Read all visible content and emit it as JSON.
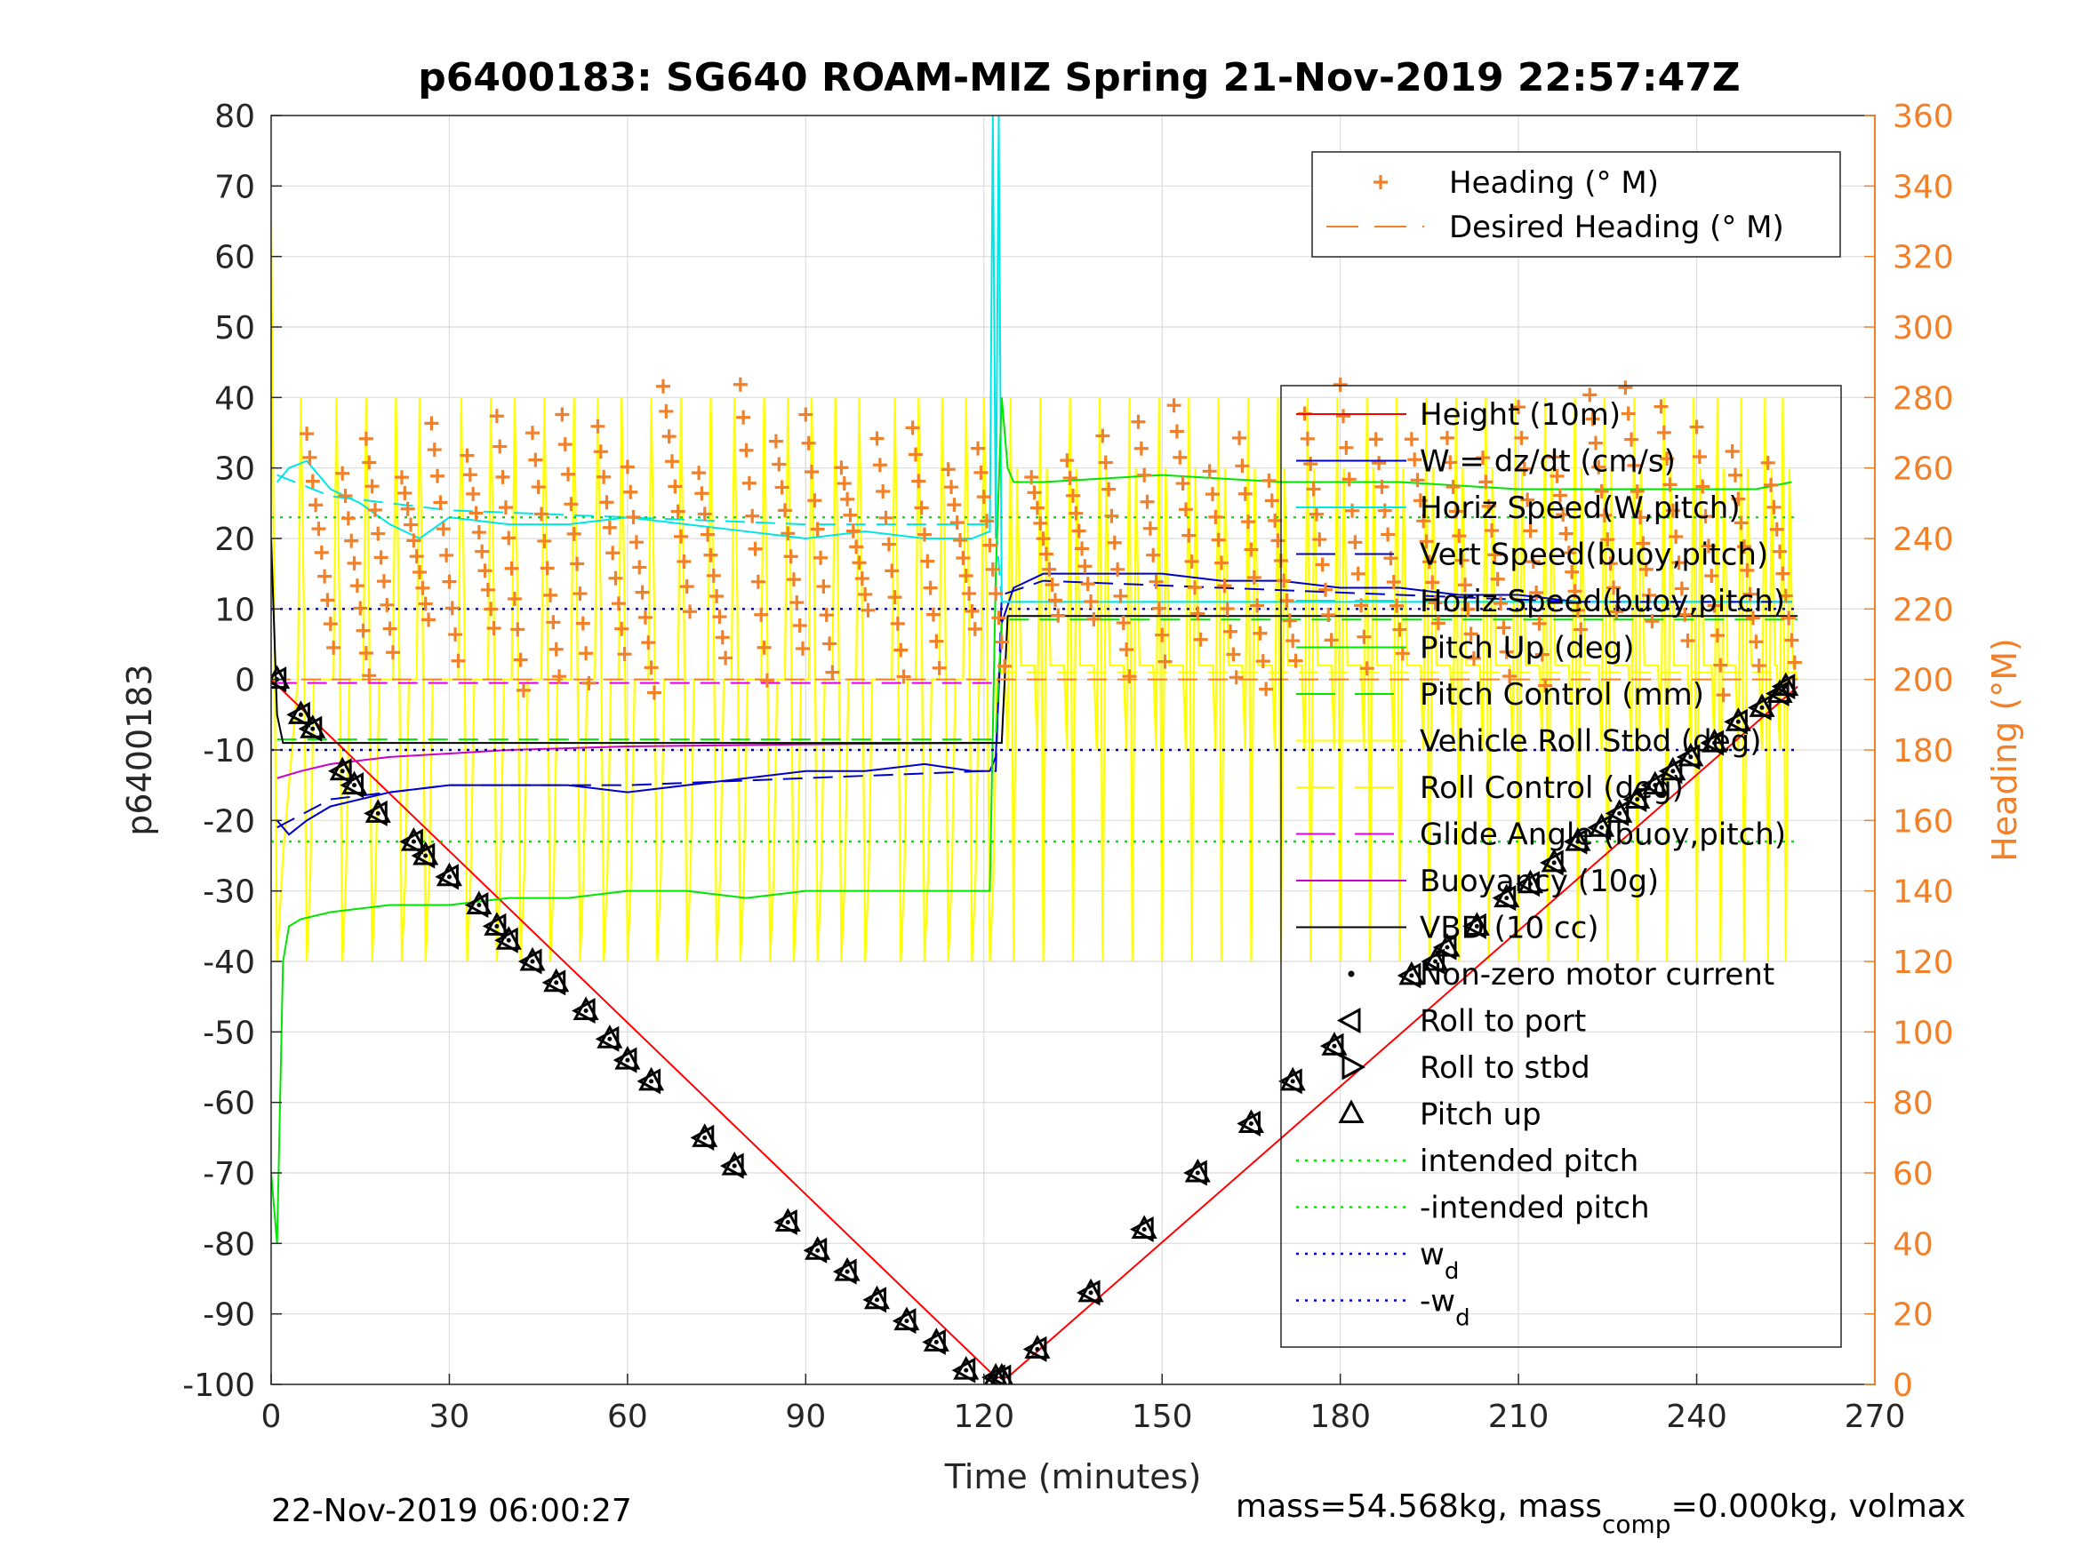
{
  "chart_data": {
    "type": "line",
    "title": "p6400183: SG640 ROAM-MIZ Spring 21-Nov-2019 22:57:47Z",
    "xlabel": "Time (minutes)",
    "ylabel_left": "p6400183",
    "ylabel_right": "Heading (°M)",
    "xlim": [
      0,
      270
    ],
    "ylim_left": [
      -100,
      80
    ],
    "ylim_right": [
      0,
      360
    ],
    "xticks": [
      0,
      30,
      60,
      90,
      120,
      150,
      180,
      210,
      240,
      270
    ],
    "yticks_left": [
      80,
      70,
      60,
      50,
      40,
      30,
      20,
      10,
      0,
      -10,
      -20,
      -30,
      -40,
      -50,
      -60,
      -70,
      -80,
      -90,
      -100
    ],
    "yticks_right": [
      360,
      340,
      320,
      300,
      280,
      260,
      240,
      220,
      200,
      180,
      160,
      140,
      120,
      100,
      80,
      60,
      40,
      20,
      0
    ],
    "grid": true,
    "footer_left": "22-Nov-2019 06:00:27",
    "footer_right": "mass=54.568kg, mass",
    "footer_right_sub": "comp",
    "footer_right_rest": "=0.000kg, volmax",
    "legend_top": [
      {
        "label": "Heading (° M)",
        "color": "#f28028",
        "style": "plus"
      },
      {
        "label": "Desired Heading (° M)",
        "color": "#f28028",
        "style": "dashed"
      }
    ],
    "legend_main": [
      {
        "label": "Height (10m)",
        "color": "#ff0000",
        "style": "solid"
      },
      {
        "label": "W = dz/dt (cm/s)",
        "color": "#0000cc",
        "style": "solid"
      },
      {
        "label": "Horiz Speed(W,pitch)",
        "color": "#00e5e5",
        "style": "solid"
      },
      {
        "label": "Vert Speed(buoy,pitch)",
        "color": "#0000cc",
        "style": "dashed"
      },
      {
        "label": "Horiz Speed(buoy,pitch)",
        "color": "#00e5e5",
        "style": "dashed"
      },
      {
        "label": "Pitch Up (deg)",
        "color": "#00e600",
        "style": "solid"
      },
      {
        "label": "Pitch Control (mm)",
        "color": "#00e600",
        "style": "dashed"
      },
      {
        "label": "Vehicle Roll Stbd (deg)",
        "color": "#ffff00",
        "style": "solid"
      },
      {
        "label": "Roll Control (deg)",
        "color": "#ffff00",
        "style": "dashed"
      },
      {
        "label": "Glide Angle (buoy,pitch)",
        "color": "#e600e6",
        "style": "dashed"
      },
      {
        "label": "Buoyancy (10g)",
        "color": "#cc00cc",
        "style": "solid"
      },
      {
        "label": "VBD (10 cc)",
        "color": "#000000",
        "style": "solid"
      },
      {
        "label": "Non-zero motor current",
        "color": "#000000",
        "style": "dot"
      },
      {
        "label": "Roll to port",
        "color": "#000000",
        "style": "tri-left"
      },
      {
        "label": "Roll to stbd",
        "color": "#000000",
        "style": "tri-right"
      },
      {
        "label": "Pitch up",
        "color": "#000000",
        "style": "tri-up"
      },
      {
        "label": "intended pitch",
        "color": "#00e600",
        "style": "dotted"
      },
      {
        "label": "-intended pitch",
        "color": "#00e600",
        "style": "dotted"
      },
      {
        "label": "w",
        "sub": "d",
        "color": "#0000cc",
        "style": "dotted"
      },
      {
        "label": "-w",
        "sub": "d",
        "color": "#0000cc",
        "style": "dotted"
      }
    ],
    "series": [
      {
        "name": "Height (10m)",
        "axis": "left",
        "color": "#ff0000",
        "style": "solid",
        "x": [
          0,
          122,
          124,
          257
        ],
        "y": [
          0,
          -99,
          -99,
          -1
        ]
      },
      {
        "name": "W = dz/dt (cm/s)",
        "axis": "left",
        "color": "#0000cc",
        "style": "solid",
        "x": [
          1,
          3,
          6,
          10,
          15,
          20,
          30,
          40,
          50,
          60,
          70,
          80,
          90,
          100,
          110,
          118,
          121,
          122,
          123,
          125,
          130,
          140,
          150,
          160,
          170,
          180,
          190,
          200,
          210,
          220,
          230,
          240,
          250,
          256
        ],
        "y": [
          -20,
          -22,
          -20,
          -18,
          -17,
          -16,
          -15,
          -15,
          -15,
          -16,
          -15,
          -14,
          -13,
          -13,
          -12,
          -13,
          -13,
          -11,
          8,
          13,
          15,
          15,
          15,
          14,
          14,
          13,
          13,
          12,
          12,
          11,
          11,
          11,
          11,
          11
        ]
      },
      {
        "name": "Horiz Speed(W,pitch)",
        "axis": "left",
        "color": "#00e5e5",
        "style": "solid",
        "x": [
          1,
          3,
          6,
          10,
          15,
          20,
          25,
          30,
          40,
          50,
          60,
          70,
          80,
          90,
          100,
          110,
          118,
          121,
          121.5,
          122,
          122.5,
          123,
          125,
          130,
          150,
          180,
          210,
          240,
          256
        ],
        "y": [
          28,
          30,
          31,
          27,
          25,
          22,
          20,
          23,
          22,
          22,
          23,
          22,
          21,
          20,
          21,
          20,
          20,
          21,
          80,
          20,
          80,
          11,
          11,
          11,
          11,
          11,
          11,
          11,
          11
        ]
      },
      {
        "name": "Vert Speed(buoy,pitch)",
        "axis": "left",
        "color": "#0000cc",
        "style": "dashed",
        "x": [
          1,
          10,
          30,
          60,
          90,
          120,
          122,
          123,
          130,
          160,
          190,
          220,
          256
        ],
        "y": [
          -21,
          -17,
          -15,
          -15,
          -14,
          -13,
          -13,
          12,
          14,
          13,
          12,
          11,
          11
        ]
      },
      {
        "name": "Horiz Speed(buoy,pitch)",
        "axis": "left",
        "color": "#00e5e5",
        "style": "dashed",
        "x": [
          1,
          10,
          30,
          60,
          90,
          120,
          122,
          123,
          130,
          160,
          190,
          220,
          256
        ],
        "y": [
          29,
          26,
          24,
          23,
          22,
          22,
          22,
          11,
          11,
          11,
          11,
          11,
          11
        ]
      },
      {
        "name": "Pitch Up (deg)",
        "axis": "left",
        "color": "#00e600",
        "style": "solid",
        "x": [
          0,
          1,
          2,
          3,
          5,
          10,
          20,
          30,
          40,
          50,
          60,
          70,
          80,
          90,
          100,
          110,
          120,
          121,
          122,
          123,
          124,
          125,
          130,
          150,
          170,
          190,
          210,
          230,
          250,
          256
        ],
        "y": [
          -70,
          -80,
          -40,
          -35,
          -34,
          -33,
          -32,
          -32,
          -31,
          -31,
          -30,
          -30,
          -31,
          -30,
          -30,
          -30,
          -30,
          -30,
          15,
          40,
          30,
          28,
          28,
          29,
          28,
          28,
          27,
          27,
          27,
          28
        ]
      },
      {
        "name": "Pitch Control (mm)",
        "axis": "left",
        "color": "#00e600",
        "style": "dashed",
        "x": [
          1,
          122,
          123,
          257
        ],
        "y": [
          -8.5,
          -8.5,
          8.5,
          8.5
        ]
      },
      {
        "name": "Glide Angle (buoy,pitch)",
        "axis": "left",
        "color": "#e600e6",
        "style": "dashed",
        "x": [
          1,
          122
        ],
        "y": [
          -0.5,
          -0.5
        ]
      },
      {
        "name": "Buoyancy (10g)",
        "axis": "left",
        "color": "#cc00cc",
        "style": "solid",
        "x": [
          1,
          5,
          10,
          20,
          30,
          40,
          60,
          90,
          120,
          122
        ],
        "y": [
          -14,
          -13,
          -12,
          -11,
          -10.5,
          -10,
          -9.5,
          -9.2,
          -9,
          -9
        ]
      },
      {
        "name": "VBD (10 cc)",
        "axis": "left",
        "color": "#000000",
        "style": "solid",
        "x": [
          0,
          1,
          2,
          122,
          123,
          124,
          257
        ],
        "y": [
          20,
          -5,
          -9,
          -9,
          -9,
          9,
          9
        ]
      },
      {
        "name": "intended pitch",
        "axis": "left",
        "color": "#00e600",
        "style": "dotted",
        "x": [
          0,
          257
        ],
        "y": [
          23,
          23
        ]
      },
      {
        "name": "-intended pitch",
        "axis": "left",
        "color": "#00e600",
        "style": "dotted",
        "x": [
          0,
          257
        ],
        "y": [
          -23,
          -23
        ]
      },
      {
        "name": "w_d",
        "axis": "left",
        "color": "#0000cc",
        "style": "dotted",
        "x": [
          0,
          257
        ],
        "y": [
          10,
          10
        ]
      },
      {
        "name": "-w_d",
        "axis": "left",
        "color": "#0000cc",
        "style": "dotted",
        "x": [
          0,
          257
        ],
        "y": [
          -10,
          -10
        ]
      }
    ],
    "desired_heading": {
      "axis": "right",
      "color": "#f28028",
      "x": [
        0,
        257
      ],
      "y": [
        200,
        200
      ]
    },
    "roll_events_x": [
      6,
      12,
      17,
      22,
      26,
      33,
      38,
      42,
      47,
      52,
      56,
      60,
      65,
      70,
      75,
      79,
      84,
      88,
      92,
      96,
      100,
      106,
      110,
      114,
      118,
      121,
      125,
      130,
      135,
      140,
      145,
      150,
      155,
      160,
      165,
      170,
      175,
      180,
      185,
      190,
      195,
      200,
      205,
      210,
      215,
      220,
      225,
      230,
      235,
      240,
      244,
      248,
      252,
      255
    ],
    "heading_sawtooth_x": [
      6,
      12,
      16,
      22,
      27,
      33,
      38,
      44,
      49,
      55,
      60,
      66,
      72,
      79,
      85,
      90,
      96,
      102,
      108,
      114,
      119,
      128,
      134,
      140,
      146,
      152,
      158,
      163,
      168,
      174,
      180,
      186,
      192,
      198,
      204,
      210,
      216,
      222,
      228,
      234,
      240,
      246,
      252
    ],
    "pitch_up_markers": [
      {
        "x": 1,
        "y": 0
      },
      {
        "x": 5,
        "y": -5
      },
      {
        "x": 7,
        "y": -7
      },
      {
        "x": 12,
        "y": -13
      },
      {
        "x": 14,
        "y": -15
      },
      {
        "x": 18,
        "y": -19
      },
      {
        "x": 24,
        "y": -23
      },
      {
        "x": 26,
        "y": -25
      },
      {
        "x": 30,
        "y": -28
      },
      {
        "x": 35,
        "y": -32
      },
      {
        "x": 38,
        "y": -35
      },
      {
        "x": 40,
        "y": -37
      },
      {
        "x": 44,
        "y": -40
      },
      {
        "x": 48,
        "y": -43
      },
      {
        "x": 53,
        "y": -47
      },
      {
        "x": 57,
        "y": -51
      },
      {
        "x": 60,
        "y": -54
      },
      {
        "x": 64,
        "y": -57
      },
      {
        "x": 73,
        "y": -65
      },
      {
        "x": 78,
        "y": -69
      },
      {
        "x": 87,
        "y": -77
      },
      {
        "x": 92,
        "y": -81
      },
      {
        "x": 97,
        "y": -84
      },
      {
        "x": 102,
        "y": -88
      },
      {
        "x": 107,
        "y": -91
      },
      {
        "x": 112,
        "y": -94
      },
      {
        "x": 117,
        "y": -98
      },
      {
        "x": 122,
        "y": -99
      },
      {
        "x": 123,
        "y": -99
      },
      {
        "x": 129,
        "y": -95
      },
      {
        "x": 138,
        "y": -87
      },
      {
        "x": 147,
        "y": -78
      },
      {
        "x": 156,
        "y": -70
      },
      {
        "x": 165,
        "y": -63
      },
      {
        "x": 172,
        "y": -57
      },
      {
        "x": 179,
        "y": -52
      },
      {
        "x": 192,
        "y": -42
      },
      {
        "x": 196,
        "y": -40
      },
      {
        "x": 198,
        "y": -38
      },
      {
        "x": 203,
        "y": -35
      },
      {
        "x": 208,
        "y": -31
      },
      {
        "x": 212,
        "y": -29
      },
      {
        "x": 216,
        "y": -26
      },
      {
        "x": 220,
        "y": -23
      },
      {
        "x": 224,
        "y": -21
      },
      {
        "x": 227,
        "y": -19
      },
      {
        "x": 230,
        "y": -17
      },
      {
        "x": 233,
        "y": -15
      },
      {
        "x": 236,
        "y": -13
      },
      {
        "x": 239,
        "y": -11
      },
      {
        "x": 243,
        "y": -9
      },
      {
        "x": 247,
        "y": -6
      },
      {
        "x": 251,
        "y": -4
      },
      {
        "x": 254,
        "y": -2
      },
      {
        "x": 255,
        "y": -1
      }
    ]
  }
}
